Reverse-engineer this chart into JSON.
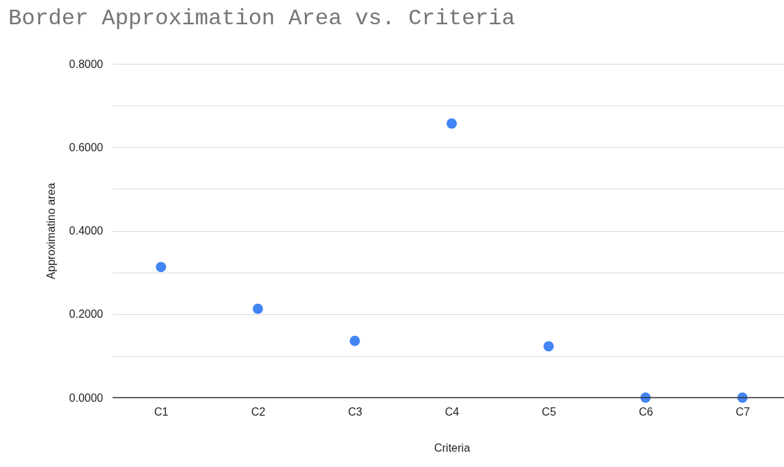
{
  "chart_data": {
    "type": "scatter",
    "title": "Border Approximation Area vs. Criteria",
    "xlabel": "Criteria",
    "ylabel": "Approximatino area",
    "categories": [
      "C1",
      "C2",
      "C3",
      "C4",
      "C5",
      "C6",
      "C7"
    ],
    "series": [
      {
        "color": "#4285f4",
        "values": [
          0.313,
          0.213,
          0.136,
          0.657,
          0.123,
          0,
          0
        ]
      }
    ],
    "ylim": [
      0,
      0.8
    ],
    "yticks": [
      {
        "value": 0,
        "label": "0.0000"
      },
      {
        "value": 0.1,
        "label": null
      },
      {
        "value": 0.2,
        "label": "0.2000"
      },
      {
        "value": 0.3,
        "label": null
      },
      {
        "value": 0.4,
        "label": "0.4000"
      },
      {
        "value": 0.5,
        "label": null
      },
      {
        "value": 0.6,
        "label": "0.6000"
      },
      {
        "value": 0.7,
        "label": null
      },
      {
        "value": 0.8,
        "label": "0.8000"
      }
    ],
    "grid": "y",
    "legend": false,
    "marker": "circle"
  }
}
